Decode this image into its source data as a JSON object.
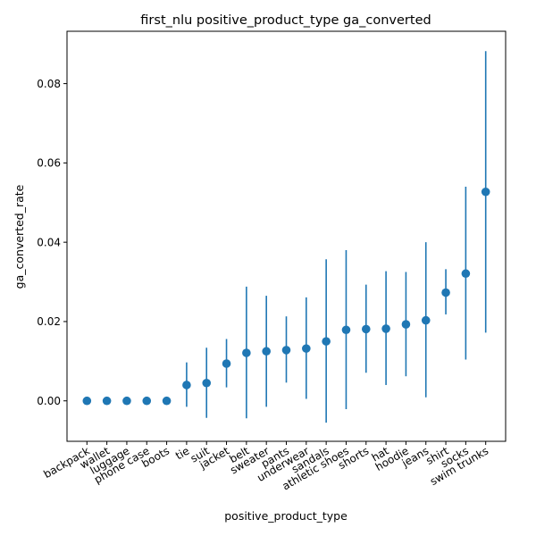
{
  "chart_data": {
    "type": "scatter",
    "title": "first_nlu positive_product_type ga_converted",
    "xlabel": "positive_product_type",
    "ylabel": "ga_converted_rate",
    "ylim": [
      -0.0102,
      0.0932
    ],
    "yticks": [
      "0.00",
      "0.02",
      "0.04",
      "0.06",
      "0.08"
    ],
    "ytick_values": [
      0.0,
      0.02,
      0.04,
      0.06,
      0.08
    ],
    "grid": false,
    "marker_color": "#1f77b4",
    "errorbar_color": "#1f77b4",
    "categories": [
      "backpack",
      "wallet",
      "luggage",
      "phone case",
      "boots",
      "tie",
      "suit",
      "jacket",
      "belt",
      "sweater",
      "pants",
      "underwear",
      "sandals",
      "athletic shoes",
      "shorts",
      "hat",
      "hoodie",
      "jeans",
      "shirt",
      "socks",
      "swim trunks"
    ],
    "series": [
      {
        "values": [
          0.0,
          0.0,
          0.0,
          0.0,
          0.0,
          0.004,
          0.0045,
          0.0094,
          0.0121,
          0.0125,
          0.0128,
          0.0132,
          0.015,
          0.0179,
          0.0181,
          0.0182,
          0.0193,
          0.0203,
          0.0273,
          0.0321,
          0.0527
        ],
        "lower": [
          0.0,
          0.0,
          0.0,
          0.0,
          0.0,
          -0.0015,
          -0.0043,
          0.0034,
          -0.0044,
          -0.0015,
          0.0046,
          0.0005,
          -0.0055,
          -0.0021,
          0.0071,
          0.004,
          0.0062,
          0.0009,
          0.0218,
          0.0104,
          0.0172
        ],
        "upper": [
          0.0,
          0.0,
          0.0,
          0.0,
          0.0,
          0.0097,
          0.0134,
          0.0156,
          0.0288,
          0.0265,
          0.0213,
          0.0261,
          0.0357,
          0.038,
          0.0293,
          0.0327,
          0.0325,
          0.04,
          0.0332,
          0.054,
          0.0882
        ]
      }
    ]
  }
}
